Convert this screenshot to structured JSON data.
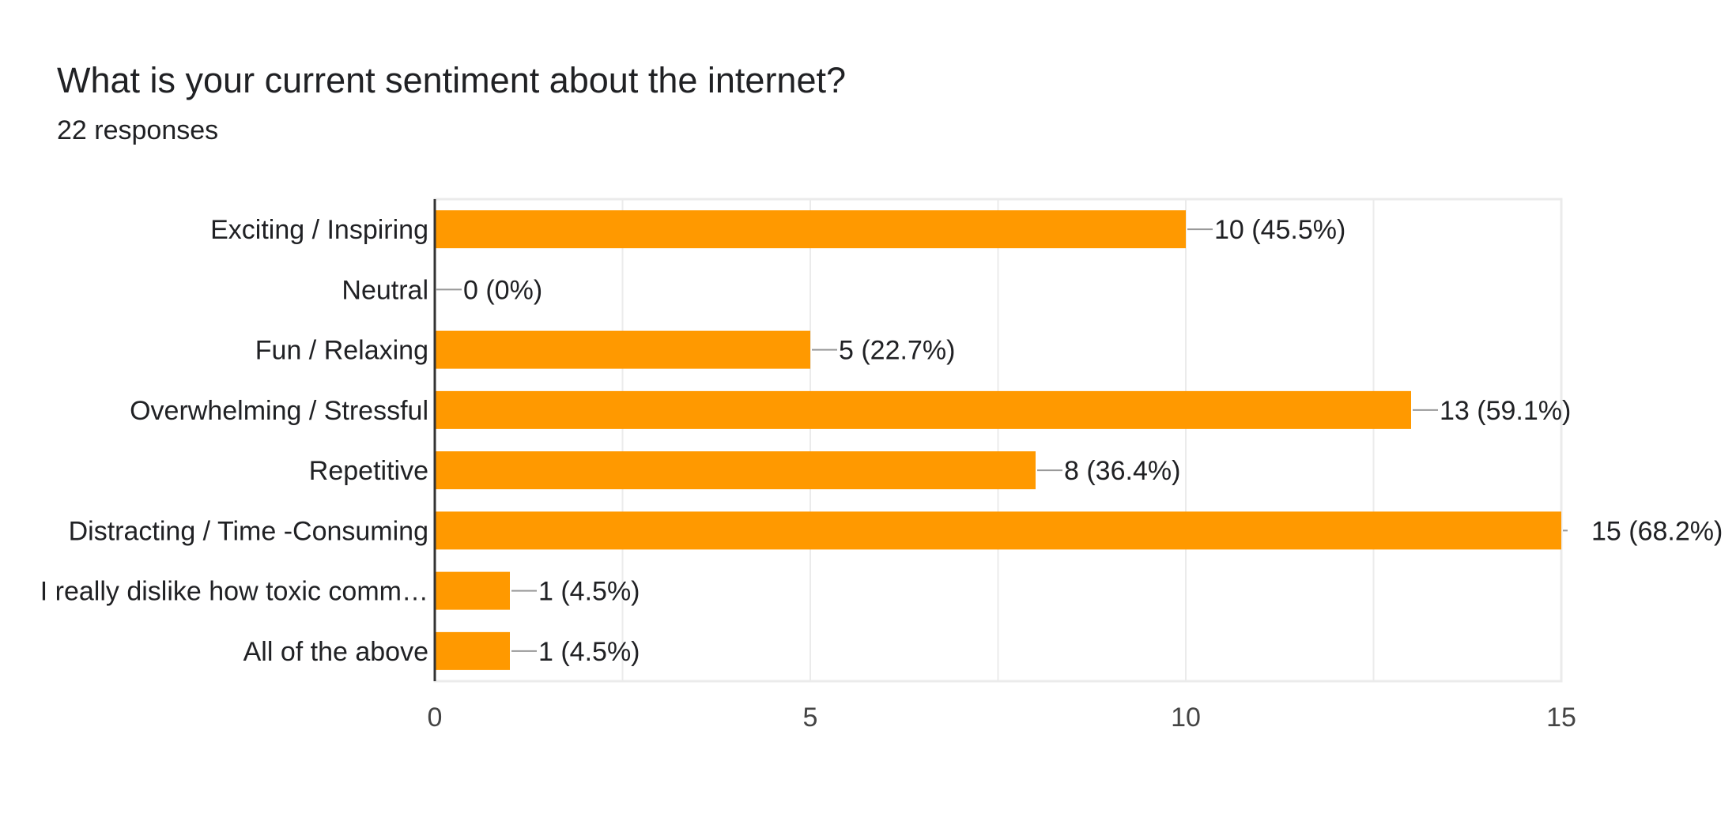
{
  "question": {
    "title": "What is your current sentiment about the internet?",
    "responses": "22 responses"
  },
  "colors": {
    "bar": "#FF9900",
    "grid": "#EBEBEB",
    "axis": "#333333",
    "leader": "#999999",
    "text": "#202124",
    "tick_text": "#444444"
  },
  "chart_data": {
    "type": "bar",
    "orientation": "horizontal",
    "categories": [
      "Exciting / Inspiring",
      "Neutral",
      "Fun / Relaxing",
      "Overwhelming / Stressful",
      "Repetitive",
      "Distracting / Time -Consuming",
      "I really dislike how toxic comm…",
      "All of the above"
    ],
    "values": [
      10,
      0,
      5,
      13,
      8,
      15,
      1,
      1
    ],
    "data_labels": [
      "10 (45.5%)",
      "0 (0%)",
      "5 (22.7%)",
      "13 (59.1%)",
      "8 (36.4%)",
      "15 (68.2%)",
      "1 (4.5%)",
      "1 (4.5%)"
    ],
    "xlim": [
      0,
      15
    ],
    "xticks": [
      0,
      5,
      10,
      15
    ],
    "grid": true,
    "legend": "none"
  }
}
